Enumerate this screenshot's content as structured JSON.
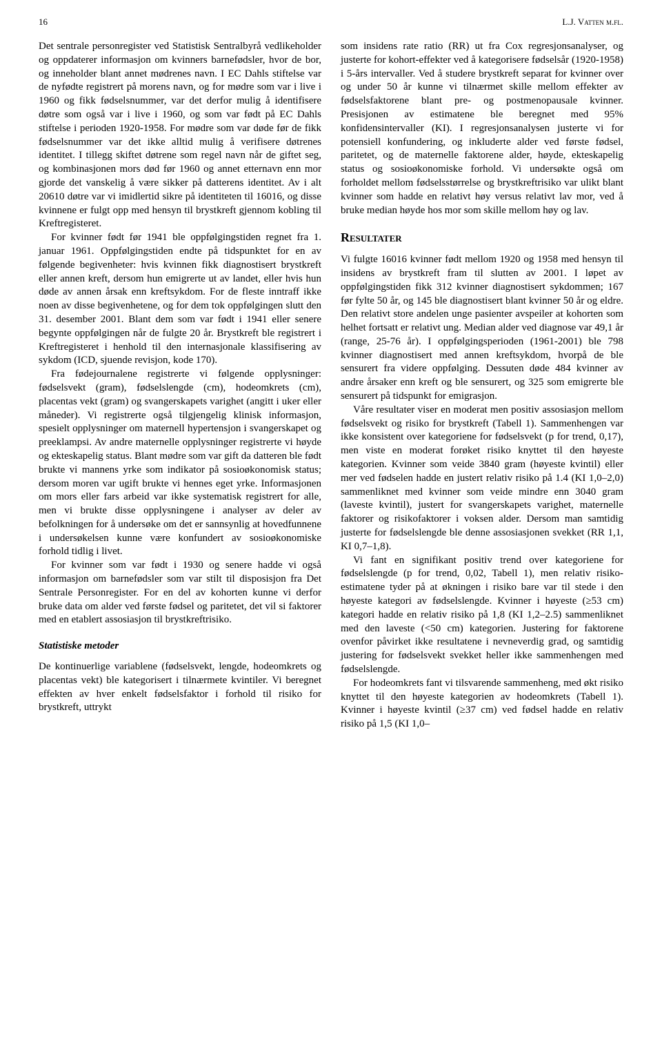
{
  "page_number": "16",
  "running_author": "L.J. Vatten m.fl.",
  "left": {
    "p1": "Det sentrale personregister ved Statistisk Sentralbyrå vedlikeholder og oppdaterer informasjon om kvinners barnefødsler, hvor de bor, og inneholder blant annet mødrenes navn. I EC Dahls stiftelse var de nyfødte registrert på morens navn, og for mødre som var i live i 1960 og fikk fødselsnummer, var det derfor mulig å identifisere døtre som også var i live i 1960, og som var født på EC Dahls stiftelse i perioden 1920-1958. For mødre som var døde før de fikk fødselsnummer var det ikke alltid mulig å verifisere døtrenes identitet. I tillegg skiftet døtrene som regel navn når de giftet seg, og kombinasjonen mors død før 1960 og annet etternavn enn mor gjorde det vanskelig å være sikker på datterens identitet. Av i alt 20610 døtre var vi imidlertid sikre på identiteten til 16016, og disse kvinnene er fulgt opp med hensyn til brystkreft gjennom kobling til Kreftregisteret.",
    "p2": "For kvinner født før 1941 ble oppfølgingstiden regnet fra 1. januar 1961. Oppfølgingstiden endte på tidspunktet for en av følgende begivenheter: hvis kvinnen fikk diagnostisert brystkreft eller annen kreft, dersom hun emigrerte ut av landet, eller hvis hun døde av annen årsak enn kreftsykdom. For de fleste inntraff ikke noen av disse begivenhetene, og for dem tok oppfølgingen slutt den 31. desember 2001. Blant dem som var født i 1941 eller senere begynte oppfølgingen når de fulgte 20 år. Brystkreft ble registrert i Kreftregisteret i henhold til den internasjonale klassifisering av sykdom (ICD, sjuende revisjon, kode 170).",
    "p3": "Fra fødejournalene registrerte vi følgende opplysninger: fødselsvekt (gram), fødselslengde (cm), hodeomkrets (cm), placentas vekt (gram) og svangerskapets varighet (angitt i uker eller måneder). Vi registrerte også tilgjengelig klinisk informasjon, spesielt opplysninger om maternell hypertensjon i svangerskapet og preeklampsi. Av andre maternelle opplysninger registrerte vi høyde og ekteskapelig status. Blant mødre som var gift da datteren ble født brukte vi mannens yrke som indikator på sosioøkonomisk status; dersom moren var ugift brukte vi hennes eget yrke. Informasjonen om mors eller fars arbeid var ikke systematisk registrert for alle, men vi brukte disse opplysningene i analyser av deler av befolkningen for å undersøke om det er sannsynlig at hovedfunnene i undersøkelsen kunne være konfundert av sosioøkonomiske forhold tidlig i livet.",
    "p4": "For kvinner som var født i 1930 og senere hadde vi også informasjon om barnefødsler som var stilt til disposisjon fra Det Sentrale Personregister. For en del av kohorten kunne vi derfor bruke data om alder ved første fødsel og paritetet, det vil si faktorer med en etablert assosiasjon til brystkreftrisiko.",
    "subhead": "Statistiske metoder",
    "p5": "De kontinuerlige variablene (fødselsvekt, lengde, hodeomkrets og placentas vekt) ble kategorisert i tilnærmete kvintiler. Vi beregnet effekten av hver enkelt fødselsfaktor i forhold til risiko for brystkreft, uttrykt"
  },
  "right": {
    "p1": "som insidens rate ratio (RR) ut fra Cox regresjonsanalyser, og justerte for kohort-effekter ved å kategorisere fødselsår (1920-1958) i 5-års intervaller. Ved å studere brystkreft separat for kvinner over og under 50 år kunne vi tilnærmet skille mellom effekter av fødselsfaktorene blant pre- og postmenopausale kvinner. Presisjonen av estimatene ble beregnet med 95% konfidensintervaller (KI). I regresjonsanalysen justerte vi for potensiell konfundering, og inkluderte alder ved første fødsel, paritetet, og de maternelle faktorene alder, høyde, ekteskapelig status og sosioøkonomiske forhold. Vi undersøkte også om forholdet mellom fødselsstørrelse og brystkreftrisiko var ulikt blant kvinner som hadde en relativt høy versus relativt lav mor, ved å bruke median høyde hos mor som skille mellom høy og lav.",
    "section": "Resultater",
    "p2": "Vi fulgte 16016 kvinner født mellom 1920 og 1958 med hensyn til insidens av brystkreft fram til slutten av 2001. I løpet av oppfølgingstiden fikk 312 kvinner diagnostisert sykdommen; 167 før fylte 50 år, og 145 ble diagnostisert blant kvinner 50 år og eldre. Den relativt store andelen unge pasienter avspeiler at kohorten som helhet fortsatt er relativt ung. Median alder ved diagnose var 49,1 år (range, 25-76 år). I oppfølgingsperioden (1961-2001) ble 798 kvinner diagnostisert med annen kreftsykdom, hvorpå de ble sensurert fra videre oppfølging. Dessuten døde 484 kvinner av andre årsaker enn kreft og ble sensurert, og 325 som emigrerte ble sensurert på tidspunkt for emigrasjon.",
    "p3": "Våre resultater viser en moderat men positiv assosiasjon mellom fødselsvekt og risiko for brystkreft (Tabell 1). Sammenhengen var ikke konsistent over kategoriene for fødselsvekt (p for trend, 0,17), men viste en moderat forøket risiko knyttet til den høyeste kategorien. Kvinner som veide 3840 gram (høyeste kvintil) eller mer ved fødselen hadde en justert relativ risiko på 1.4 (KI 1,0–2,0) sammenliknet med kvinner som veide mindre enn 3040 gram (laveste kvintil), justert for svangerskapets varighet, maternelle faktorer og risikofaktorer i voksen alder. Dersom man samtidig justerte for fødselslengde ble denne assosiasjonen svekket (RR 1,1, KI 0,7–1,8).",
    "p4": "Vi fant en signifikant positiv trend over kategoriene for fødselslengde (p for trend, 0,02, Tabell 1), men relativ risiko-estimatene tyder på at økningen i risiko bare var til stede i den høyeste kategori av fødselslengde. Kvinner i høyeste (≥53 cm) kategori hadde en relativ risiko på 1,8 (KI 1,2–2.5) sammenliknet med den laveste (<50 cm) kategorien. Justering for faktorene ovenfor påvirket ikke resultatene i nevneverdig grad, og samtidig justering for fødselsvekt svekket heller ikke sammenhengen med fødselslengde.",
    "p5": "For hodeomkrets fant vi tilsvarende sammenheng, med økt risiko knyttet til den høyeste kategorien av hodeomkrets (Tabell 1). Kvinner i høyeste kvintil (≥37 cm) ved fødsel hadde en relativ risiko på 1,5 (KI 1,0–"
  }
}
